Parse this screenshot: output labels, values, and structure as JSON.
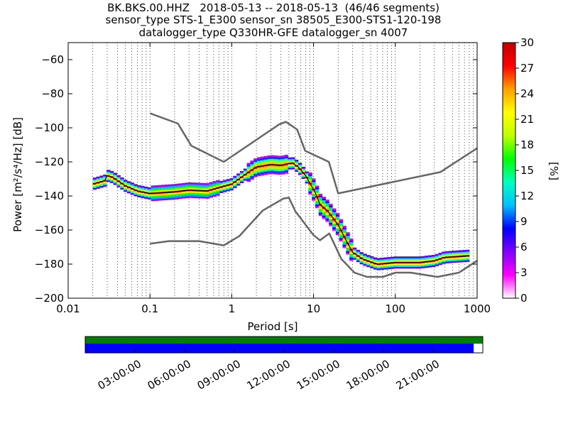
{
  "header": {
    "line1": "BK.BKS.00.HHZ   2018-05-13 -- 2018-05-13  (46/46 segments)",
    "line2": "sensor_type STS-1_E300 sensor_sn 38505_E300-STS1-120-198",
    "line3": "datalogger_type Q330HR-GFE datalogger_sn 4007"
  },
  "chart_data": [
    {
      "type": "heatmap",
      "xlabel": "Period [s]",
      "ylabel": "Power [m²/s⁴/Hz] [dB]",
      "xscale": "log",
      "xlim": [
        0.01,
        1000
      ],
      "ylim": [
        -200,
        -50
      ],
      "x_ticks": [
        "0.01",
        "0.1",
        "1",
        "10",
        "100",
        "1000"
      ],
      "y_ticks": [
        "−60",
        "−80",
        "−100",
        "−120",
        "−140",
        "−160",
        "−180",
        "−200"
      ],
      "grid": "dotted vertical",
      "colorbar": {
        "label": "[%]",
        "ticks": [
          "0",
          "3",
          "6",
          "9",
          "12",
          "15",
          "18",
          "21",
          "24",
          "27",
          "30"
        ],
        "range": [
          0,
          30
        ],
        "colormap": [
          "#ffffff",
          "#ff00ff",
          "#8000ff",
          "#0000ff",
          "#00c0ff",
          "#00ffc0",
          "#00ff00",
          "#c0ff00",
          "#ffff00",
          "#ffa000",
          "#ff0000",
          "#c00000"
        ]
      },
      "series": [
        {
          "name": "",
          "role": "high noise model",
          "color": "#666666",
          "points": [
            [
              0.1,
              -91.5
            ],
            [
              0.22,
              -97.5
            ],
            [
              0.32,
              -110.5
            ],
            [
              0.8,
              -120
            ],
            [
              3.8,
              -98
            ],
            [
              4.6,
              -96.5
            ],
            [
              6.3,
              -101
            ],
            [
              7.9,
              -113.5
            ],
            [
              15.4,
              -120
            ],
            [
              20,
              -138.5
            ],
            [
              354.8,
              -126
            ],
            [
              1000,
              -112
            ]
          ]
        },
        {
          "name": "",
          "role": "low noise model",
          "color": "#666666",
          "points": [
            [
              0.1,
              -168
            ],
            [
              0.17,
              -166.5
            ],
            [
              0.4,
              -166.5
            ],
            [
              0.8,
              -169
            ],
            [
              1.24,
              -163.5
            ],
            [
              2.4,
              -148.5
            ],
            [
              4.3,
              -141.5
            ],
            [
              5.0,
              -141
            ],
            [
              6.0,
              -149
            ],
            [
              10.0,
              -163
            ],
            [
              12.0,
              -166
            ],
            [
              15.6,
              -162
            ],
            [
              21.9,
              -177
            ],
            [
              31.6,
              -185
            ],
            [
              45,
              -187.5
            ],
            [
              70,
              -187.5
            ],
            [
              101,
              -185
            ],
            [
              154,
              -185
            ],
            [
              328,
              -187.5
            ],
            [
              600,
              -185
            ],
            [
              1000,
              -178
            ]
          ]
        },
        {
          "name": "",
          "role": "median PSD",
          "color": "#000000",
          "points": [
            [
              0.02,
              -133
            ],
            [
              0.028,
              -131
            ],
            [
              0.03,
              -128
            ],
            [
              0.035,
              -129
            ],
            [
              0.05,
              -134
            ],
            [
              0.07,
              -137
            ],
            [
              0.1,
              -138.5
            ],
            [
              0.2,
              -137.5
            ],
            [
              0.3,
              -136.5
            ],
            [
              0.5,
              -137
            ],
            [
              0.7,
              -135
            ],
            [
              1.0,
              -133
            ],
            [
              1.5,
              -127
            ],
            [
              2.0,
              -123
            ],
            [
              3.0,
              -121.5
            ],
            [
              4.0,
              -122
            ],
            [
              5.5,
              -120.5
            ],
            [
              6.5,
              -123
            ],
            [
              8.0,
              -128
            ],
            [
              10.5,
              -138
            ],
            [
              12,
              -145
            ],
            [
              15,
              -149
            ],
            [
              20,
              -157
            ],
            [
              25,
              -166
            ],
            [
              30,
              -173
            ],
            [
              40,
              -177
            ],
            [
              60,
              -180
            ],
            [
              100,
              -179
            ],
            [
              200,
              -179
            ],
            [
              300,
              -178
            ],
            [
              400,
              -176
            ],
            [
              800,
              -175
            ]
          ]
        }
      ]
    },
    {
      "type": "bar",
      "role": "data availability",
      "x_ticks": [
        "03:00:00",
        "06:00:00",
        "09:00:00",
        "12:00:00",
        "15:00:00",
        "18:00:00",
        "21:00:00"
      ],
      "series": [
        {
          "name": "",
          "color": "#008000",
          "coverage": 1.0
        },
        {
          "name": "",
          "color": "#0000ff",
          "coverage": 0.977
        }
      ]
    }
  ]
}
